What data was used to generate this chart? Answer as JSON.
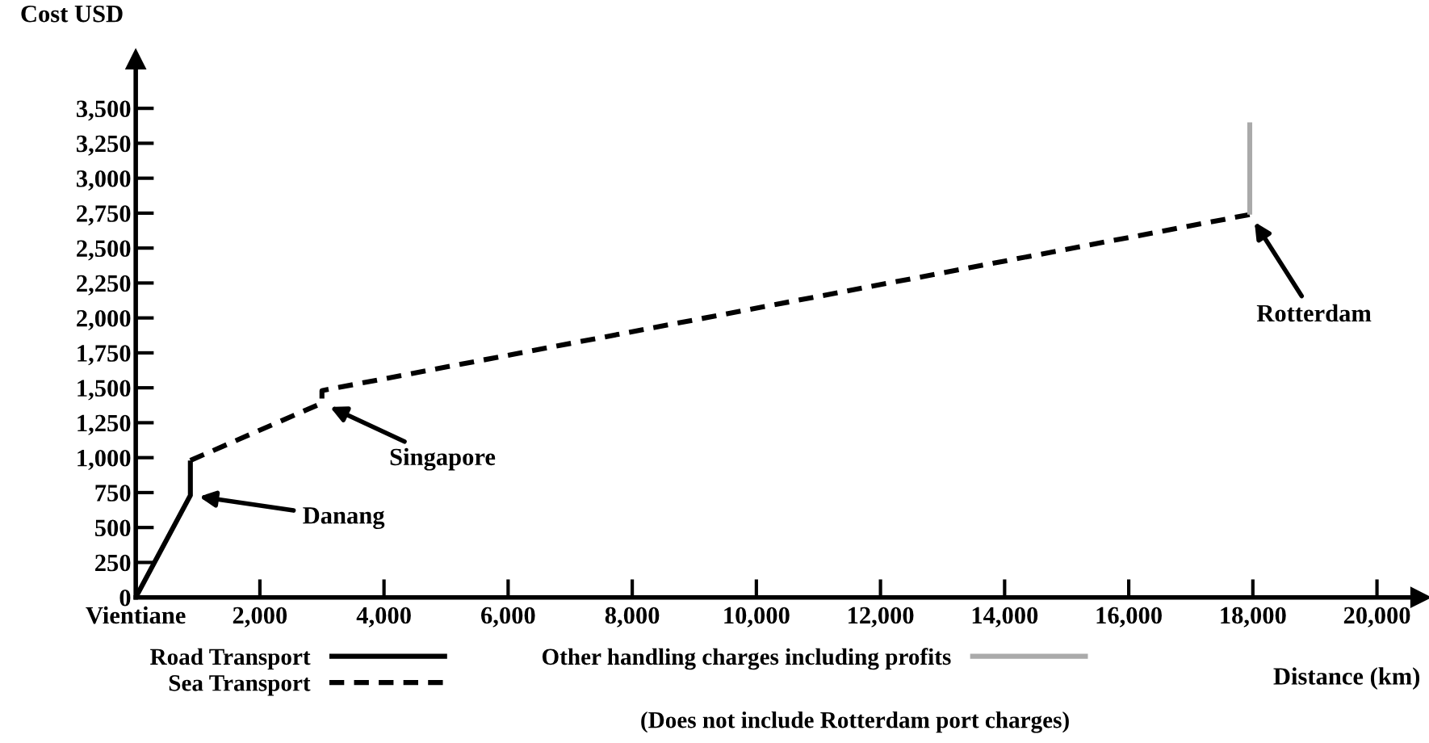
{
  "chart_data": {
    "type": "line",
    "xlabel": "Distance (km)",
    "ylabel": "Cost USD",
    "xlim": [
      0,
      20700
    ],
    "ylim": [
      0,
      3850
    ],
    "xticks": [
      {
        "value": 0,
        "label": "Vientiane"
      },
      {
        "value": 2000,
        "label": "2,000"
      },
      {
        "value": 4000,
        "label": "4,000"
      },
      {
        "value": 6000,
        "label": "6,000"
      },
      {
        "value": 8000,
        "label": "8,000"
      },
      {
        "value": 10000,
        "label": "10,000"
      },
      {
        "value": 12000,
        "label": "12,000"
      },
      {
        "value": 14000,
        "label": "14,000"
      },
      {
        "value": 16000,
        "label": "16,000"
      },
      {
        "value": 18000,
        "label": "18,000"
      },
      {
        "value": 20000,
        "label": "20,000"
      }
    ],
    "yticks": [
      0,
      250,
      500,
      750,
      {
        "value": 1000,
        "label": "1,000"
      },
      {
        "value": 1250,
        "label": "1,250"
      },
      {
        "value": 1500,
        "label": "1,500"
      },
      {
        "value": 1750,
        "label": "1,750"
      },
      {
        "value": 2000,
        "label": "2,000"
      },
      {
        "value": 2250,
        "label": "2,250"
      },
      {
        "value": 2500,
        "label": "2,500"
      },
      {
        "value": 2750,
        "label": "2,750"
      },
      {
        "value": 3000,
        "label": "3,000"
      },
      {
        "value": 3250,
        "label": "3,250"
      },
      {
        "value": 3500,
        "label": "3,500"
      }
    ],
    "series": [
      {
        "name": "Road Transport",
        "color": "#000000",
        "line_style": "solid",
        "x": [
          0,
          880,
          880
        ],
        "values": [
          0,
          730,
          980
        ]
      },
      {
        "name": "Sea Transport",
        "color": "#000000",
        "line_style": "dashed",
        "x": [
          880,
          3000,
          3000,
          17950
        ],
        "values": [
          980,
          1390,
          1480,
          2740
        ]
      },
      {
        "name": "Other handling charges including profits",
        "color": "#aaaaaa",
        "line_style": "solid",
        "x": [
          17950,
          17950
        ],
        "values": [
          2740,
          3400
        ]
      }
    ],
    "annotations": [
      {
        "text": "Danang",
        "x": 880,
        "y": 730
      },
      {
        "text": "Singapore",
        "x": 3000,
        "y": 1390
      },
      {
        "text": "Rotterdam",
        "x": 17950,
        "y": 2740
      },
      "(Does not include Rotterdam port charges)"
    ],
    "legend": "bottom",
    "grid": false,
    "marker": "none"
  }
}
